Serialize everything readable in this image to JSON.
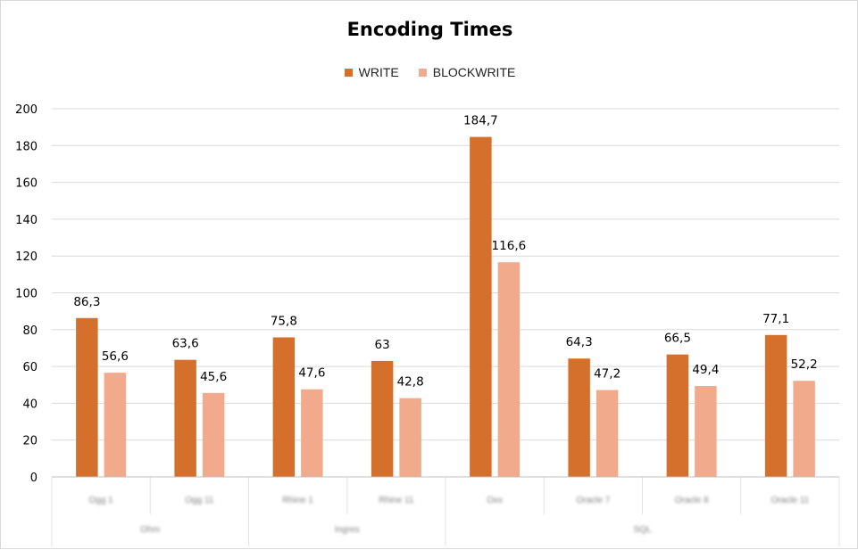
{
  "chart_data": {
    "type": "bar",
    "title": "Encoding Times",
    "categories": [
      "Ogg 1",
      "Ogg 11",
      "Rhine 1",
      "Rhine 11",
      "Oxx",
      "Oracle 7",
      "Oracle 8",
      "Oracle 11"
    ],
    "groups": [
      {
        "label": "Ohm",
        "categories": [
          "Ogg 1",
          "Ogg 11"
        ]
      },
      {
        "label": "Ingres",
        "categories": [
          "Rhine 1",
          "Rhine 11"
        ]
      },
      {
        "label": "SQL",
        "categories": [
          "Oxx",
          "Oracle 7",
          "Oracle 8",
          "Oracle 11"
        ]
      }
    ],
    "series": [
      {
        "name": "WRITE",
        "color": "#D4702C",
        "values": [
          86.3,
          63.6,
          75.8,
          63,
          184.7,
          64.3,
          66.5,
          77.1
        ],
        "labels": [
          "86,3",
          "63,6",
          "75,8",
          "63",
          "184,7",
          "64,3",
          "66,5",
          "77,1"
        ]
      },
      {
        "name": "BLOCKWRITE",
        "color": "#F2AA8C",
        "values": [
          56.6,
          45.6,
          47.6,
          42.8,
          116.6,
          47.2,
          49.4,
          52.2
        ],
        "labels": [
          "56,6",
          "45,6",
          "47,6",
          "42,8",
          "116,6",
          "47,2",
          "49,4",
          "52,2"
        ]
      }
    ],
    "ylim": [
      0,
      200
    ],
    "yticks": [
      0,
      20,
      40,
      60,
      80,
      100,
      120,
      140,
      160,
      180,
      200
    ],
    "grid": true,
    "legend": "top-center"
  }
}
